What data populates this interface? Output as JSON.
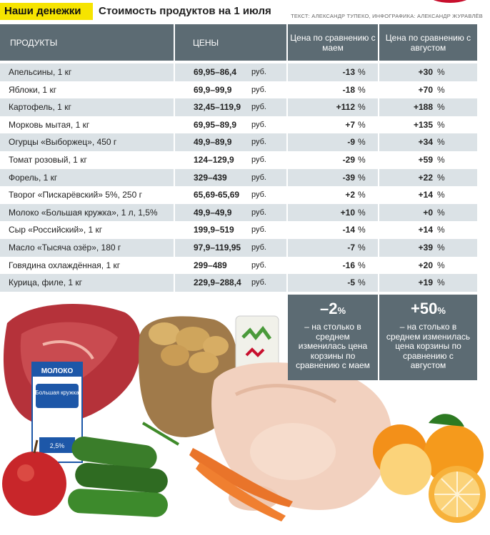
{
  "header": {
    "tag": "Наши денежки",
    "title": "Стоимость продуктов на 1 июля",
    "credits": "ТЕКСТ: АЛЕКСАНДР ТУПЕКО, ИНФОГРАФИКА: АЛЕКСАНДР ЖУРАВЛЁВ"
  },
  "columns": {
    "products": "ПРОДУКТЫ",
    "prices": "ЦЕНЫ",
    "vs_may": "Цена по сравнению с маем",
    "vs_august": "Цена по сравнению с августом"
  },
  "currency": "руб.",
  "percent": "%",
  "chart_data": {
    "type": "table",
    "title": "Стоимость продуктов на 1 июля",
    "columns": [
      "ПРОДУКТЫ",
      "ЦЕНЫ",
      "Цена по сравнению с маем",
      "Цена по сравнению с августом"
    ],
    "rows": [
      {
        "product": "Апельсины, 1 кг",
        "price": "69,95–86,4",
        "vs_may": "-13",
        "vs_august": "+30"
      },
      {
        "product": "Яблоки, 1 кг",
        "price": "69,9–99,9",
        "vs_may": "-18",
        "vs_august": "+70"
      },
      {
        "product": "Картофель, 1 кг",
        "price": "32,45–119,9",
        "vs_may": "+112",
        "vs_august": "+188"
      },
      {
        "product": "Морковь мытая, 1 кг",
        "price": "69,95–89,9",
        "vs_may": "+7",
        "vs_august": "+135"
      },
      {
        "product": "Огурцы «Выборжец», 450 г",
        "price": "49,9–89,9",
        "vs_may": "-9",
        "vs_august": "+34"
      },
      {
        "product": "Томат розовый, 1 кг",
        "price": "124–129,9",
        "vs_may": "-29",
        "vs_august": "+59"
      },
      {
        "product": "Форель, 1 кг",
        "price": "329–439",
        "vs_may": "-39",
        "vs_august": "+22"
      },
      {
        "product": "Творог «Пискарёвский» 5%, 250 г",
        "price": "65,69-65,69",
        "vs_may": "+2",
        "vs_august": "+14"
      },
      {
        "product": "Молоко «Большая кружка», 1 л, 1,5%",
        "price": "49,9–49,9",
        "vs_may": "+10",
        "vs_august": "+0"
      },
      {
        "product": "Сыр «Российский», 1 кг",
        "price": "199,9–519",
        "vs_may": "-14",
        "vs_august": "+14"
      },
      {
        "product": "Масло «Тысяча озёр», 180 г",
        "price": "97,9–119,95",
        "vs_may": "-7",
        "vs_august": "+39"
      },
      {
        "product": "Говядина охлаждённая, 1 кг",
        "price": "299–489",
        "vs_may": "-16",
        "vs_august": "+20"
      },
      {
        "product": "Курица, филе, 1 кг",
        "price": "229,9–288,4",
        "vs_may": "-5",
        "vs_august": "+19"
      }
    ]
  },
  "summary": {
    "may": {
      "value": "–2",
      "unit": "%",
      "text": "– на столько в среднем изменилась цена корзины по сравнению с маем"
    },
    "august": {
      "value": "+50",
      "unit": "%",
      "text": "– на столько в среднем изменилась цена корзины по сравнению с августом"
    }
  },
  "packaging": {
    "milk_brand": "МОЛОКО",
    "milk_name": "Большая кружка",
    "milk_fat": "2,5%"
  },
  "colors": {
    "header_bg": "#5c6b73",
    "row_alt": "#dbe2e6",
    "tag_bg": "#f6e400"
  }
}
